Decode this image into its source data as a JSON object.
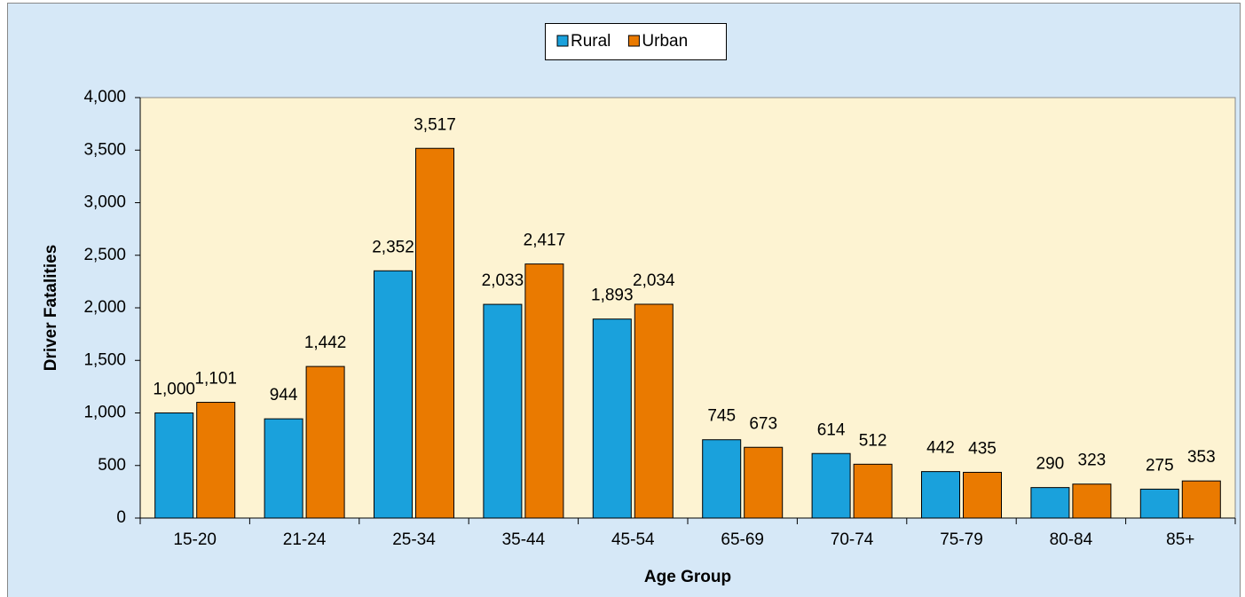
{
  "chart_data": {
    "type": "bar",
    "xlabel": "Age Group",
    "ylabel": "Driver Fatalities",
    "categories": [
      "15-20",
      "21-24",
      "25-34",
      "35-44",
      "45-54",
      "65-69",
      "70-74",
      "75-79",
      "80-84",
      "85+"
    ],
    "series": [
      {
        "name": "Rural",
        "color": "#1aa1dc",
        "values": [
          1000,
          944,
          2352,
          2033,
          1893,
          745,
          614,
          442,
          290,
          275
        ],
        "value_labels": [
          "1,000",
          "944",
          "2,352",
          "2,033",
          "1,893",
          "745",
          "614",
          "442",
          "290",
          "275"
        ]
      },
      {
        "name": "Urban",
        "color": "#ea7a00",
        "values": [
          1101,
          1442,
          3517,
          2417,
          2034,
          673,
          512,
          435,
          323,
          353
        ],
        "value_labels": [
          "1,101",
          "1,442",
          "3,517",
          "2,417",
          "2,034",
          "673",
          "512",
          "435",
          "323",
          "353"
        ]
      }
    ],
    "ylim": [
      0,
      4000
    ],
    "yticks": [
      0,
      500,
      {
        "value": 1000,
        "label": "1,000"
      },
      {
        "value": 1500,
        "label": "1,500"
      },
      {
        "value": 2000,
        "label": "2,000"
      },
      {
        "value": 2500,
        "label": "2,500"
      },
      {
        "value": 3000,
        "label": "3,000"
      },
      {
        "value": 3500,
        "label": "3,500"
      },
      {
        "value": 4000,
        "label": "4,000"
      }
    ],
    "legend": "top"
  }
}
